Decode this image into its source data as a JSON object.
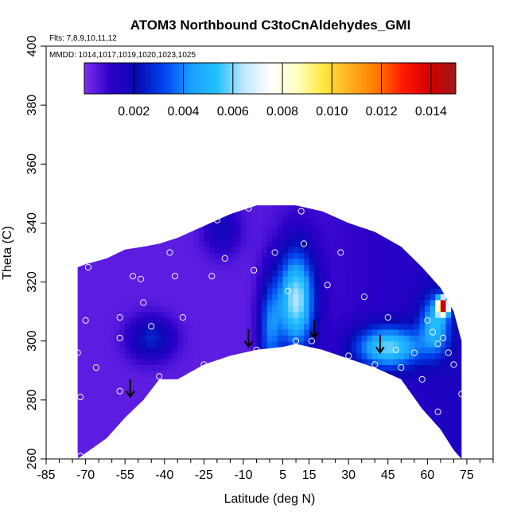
{
  "chart_data": {
    "type": "heatmap",
    "title": "ATOM3 Northbound C3toCnAldehydes_GMI",
    "annotations": [
      "Flts: 7,8,9,10,11,12",
      "MMDD: 1014,1017,1019,1020,1023,1025"
    ],
    "xlabel": "Latitude (deg N)",
    "ylabel": "Theta (C)",
    "xlim": [
      -85,
      85
    ],
    "ylim": [
      260,
      400
    ],
    "x_ticks": [
      -85,
      -70,
      -55,
      -40,
      -25,
      -10,
      5,
      15,
      30,
      45,
      60,
      75
    ],
    "y_ticks": [
      260,
      280,
      300,
      320,
      340,
      360,
      380,
      400
    ],
    "grid": false,
    "colorbar": {
      "range": [
        0,
        0.015
      ],
      "ticks": [
        "0.002",
        "0.004",
        "0.006",
        "0.008",
        "0.010",
        "0.012",
        "0.014"
      ],
      "placement": "top",
      "colors": [
        "#7c2ff0",
        "#2a00c8",
        "#0a0ab4",
        "#0044ee",
        "#1a9cff",
        "#22c0ff",
        "#bfe6ff",
        "#ffffff",
        "#ffffc0",
        "#ffe840",
        "#ffb020",
        "#ff7a00",
        "#ff1a00",
        "#d40000",
        "#a01818"
      ]
    },
    "envelope": [
      {
        "lat": -73,
        "top": 325,
        "bottom": 260
      },
      {
        "lat": -70,
        "top": 326,
        "bottom": 262
      },
      {
        "lat": -62,
        "top": 328,
        "bottom": 267
      },
      {
        "lat": -55,
        "top": 331,
        "bottom": 274
      },
      {
        "lat": -48,
        "top": 332,
        "bottom": 280
      },
      {
        "lat": -42,
        "top": 333,
        "bottom": 287
      },
      {
        "lat": -35,
        "top": 335,
        "bottom": 287
      },
      {
        "lat": -25,
        "top": 339,
        "bottom": 292
      },
      {
        "lat": -15,
        "top": 343,
        "bottom": 295
      },
      {
        "lat": -5,
        "top": 346,
        "bottom": 297
      },
      {
        "lat": 5,
        "top": 346,
        "bottom": 298
      },
      {
        "lat": 10,
        "top": 346,
        "bottom": 299
      },
      {
        "lat": 20,
        "top": 344,
        "bottom": 297
      },
      {
        "lat": 30,
        "top": 340,
        "bottom": 294
      },
      {
        "lat": 40,
        "top": 337,
        "bottom": 291
      },
      {
        "lat": 50,
        "top": 332,
        "bottom": 287
      },
      {
        "lat": 58,
        "top": 325,
        "bottom": 277
      },
      {
        "lat": 65,
        "top": 318,
        "bottom": 270
      },
      {
        "lat": 70,
        "top": 310,
        "bottom": 263
      },
      {
        "lat": 73,
        "top": 300,
        "bottom": 260
      }
    ],
    "features": [
      {
        "lat": 10,
        "theta": 314,
        "value": 0.0065,
        "spread_lat": 5,
        "spread_theta": 12
      },
      {
        "lat": 45,
        "theta": 298,
        "value": 0.0055,
        "spread_lat": 9,
        "spread_theta": 5
      },
      {
        "lat": 63,
        "theta": 306,
        "value": 0.0045,
        "spread_lat": 4,
        "spread_theta": 7
      },
      {
        "lat": 66,
        "theta": 312,
        "value": 0.013,
        "spread_lat": 1.5,
        "spread_theta": 2
      },
      {
        "lat": -45,
        "theta": 301,
        "value": 0.003,
        "spread_lat": 6,
        "spread_theta": 5
      },
      {
        "lat": 0,
        "theta": 304,
        "value": 0.0038,
        "spread_lat": 3,
        "spread_theta": 12
      },
      {
        "lat": -18,
        "theta": 338,
        "value": 0.0022,
        "spread_lat": 5,
        "spread_theta": 6
      }
    ],
    "observations": [
      {
        "lat": -72,
        "theta": 261
      },
      {
        "lat": -72,
        "theta": 281
      },
      {
        "lat": -73,
        "theta": 296
      },
      {
        "lat": -70,
        "theta": 307
      },
      {
        "lat": -69,
        "theta": 325
      },
      {
        "lat": -66,
        "theta": 291
      },
      {
        "lat": -58,
        "theta": 269
      },
      {
        "lat": -57,
        "theta": 283
      },
      {
        "lat": -57,
        "theta": 301
      },
      {
        "lat": -57,
        "theta": 308
      },
      {
        "lat": -52,
        "theta": 322
      },
      {
        "lat": -49,
        "theta": 321
      },
      {
        "lat": -48,
        "theta": 313
      },
      {
        "lat": -45,
        "theta": 305
      },
      {
        "lat": -42,
        "theta": 288
      },
      {
        "lat": -38,
        "theta": 330
      },
      {
        "lat": -36,
        "theta": 322
      },
      {
        "lat": -33,
        "theta": 308
      },
      {
        "lat": -25,
        "theta": 292
      },
      {
        "lat": -22,
        "theta": 322
      },
      {
        "lat": -20,
        "theta": 341
      },
      {
        "lat": -17,
        "theta": 328
      },
      {
        "lat": -8,
        "theta": 345
      },
      {
        "lat": -6,
        "theta": 324
      },
      {
        "lat": -5,
        "theta": 297
      },
      {
        "lat": 2,
        "theta": 330
      },
      {
        "lat": 7,
        "theta": 317
      },
      {
        "lat": 10,
        "theta": 300
      },
      {
        "lat": 12,
        "theta": 344
      },
      {
        "lat": 13,
        "theta": 333
      },
      {
        "lat": 16,
        "theta": 300
      },
      {
        "lat": 22,
        "theta": 319
      },
      {
        "lat": 27,
        "theta": 330
      },
      {
        "lat": 30,
        "theta": 295
      },
      {
        "lat": 36,
        "theta": 315
      },
      {
        "lat": 40,
        "theta": 292
      },
      {
        "lat": 45,
        "theta": 308
      },
      {
        "lat": 48,
        "theta": 297
      },
      {
        "lat": 50,
        "theta": 291
      },
      {
        "lat": 55,
        "theta": 296
      },
      {
        "lat": 58,
        "theta": 287
      },
      {
        "lat": 60,
        "theta": 307
      },
      {
        "lat": 62,
        "theta": 303
      },
      {
        "lat": 64,
        "theta": 299
      },
      {
        "lat": 66,
        "theta": 301
      },
      {
        "lat": 68,
        "theta": 296
      },
      {
        "lat": 70,
        "theta": 292
      },
      {
        "lat": 64,
        "theta": 276
      },
      {
        "lat": 73,
        "theta": 282
      }
    ],
    "tropopause_markers": [
      {
        "lat": -53,
        "theta": 287
      },
      {
        "lat": -8,
        "theta": 304
      },
      {
        "lat": 17,
        "theta": 307
      },
      {
        "lat": 42,
        "theta": 302
      }
    ]
  }
}
